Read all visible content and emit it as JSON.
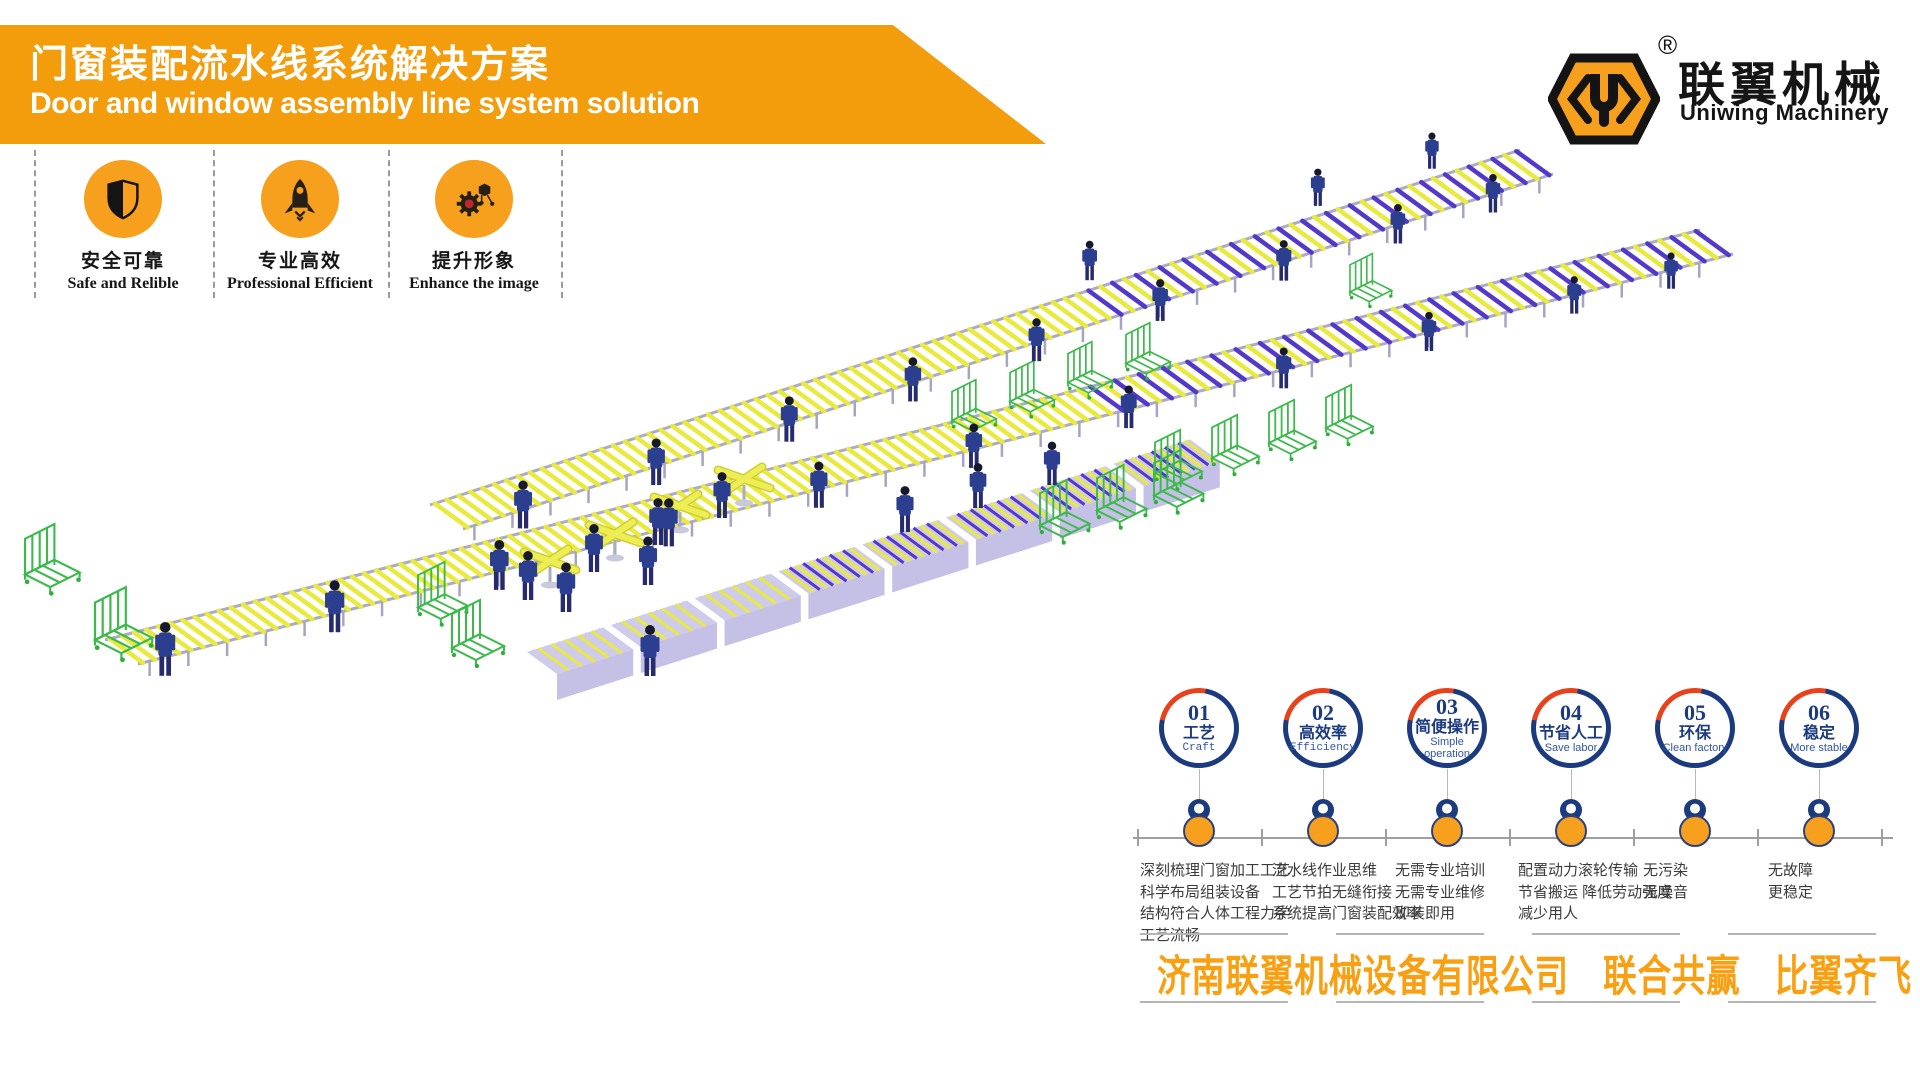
{
  "header": {
    "title_zh": "门窗装配流水线系统解决方案",
    "title_en": "Door and window assembly line system solution"
  },
  "logo": {
    "name_zh": "联翼机械",
    "name_en": "Uniwing Machinery",
    "registered": "®"
  },
  "features": [
    {
      "zh": "安全可靠",
      "en": "Safe and Relible",
      "icon": "shield-icon"
    },
    {
      "zh": "专业高效",
      "en": "Professional Efficient",
      "icon": "rocket-icon"
    },
    {
      "zh": "提升形象",
      "en": "Enhance the image",
      "icon": "gear-molecule-icon"
    }
  ],
  "timeline": {
    "items": [
      {
        "num": "01",
        "zh": "工艺",
        "en": "Craft",
        "desc": [
          "深刻梳理门窗加工工艺",
          "科学布局组装设备",
          "结构符合人体工程力学",
          "工艺流畅"
        ]
      },
      {
        "num": "02",
        "zh": "高效率",
        "en": "Efficiency",
        "desc": [
          "流水线作业思维",
          "工艺节拍无缝衔接",
          "系统提高门窗装配效率"
        ]
      },
      {
        "num": "03",
        "zh": "简便操作",
        "en": "Simple operation",
        "desc": [
          "无需专业培训",
          "无需专业维修",
          "即装即用"
        ]
      },
      {
        "num": "04",
        "zh": "节省人工",
        "en": "Save labor",
        "desc": [
          "配置动力滚轮传输",
          "节省搬运 降低劳动强度",
          "减少用人"
        ]
      },
      {
        "num": "05",
        "zh": "环保",
        "en": "Clean factory",
        "desc": [
          "无污染",
          "无噪音"
        ]
      },
      {
        "num": "06",
        "zh": "稳定",
        "en": "More stable",
        "desc": [
          "无故障",
          "更稳定"
        ]
      }
    ]
  },
  "footer": {
    "company": "济南联翼机械设备有限公司",
    "slogan1": "联合共赢",
    "slogan2": "比翼齐飞"
  },
  "colors": {
    "accent_orange": "#F39C0C",
    "badge_orange": "#F6A01E",
    "navy": "#1B3B7E",
    "ring_red": "#E8421C",
    "rack_green": "#3CB94B",
    "roller_yellow": "#E9E93E",
    "roller_purple": "#5438C9"
  }
}
